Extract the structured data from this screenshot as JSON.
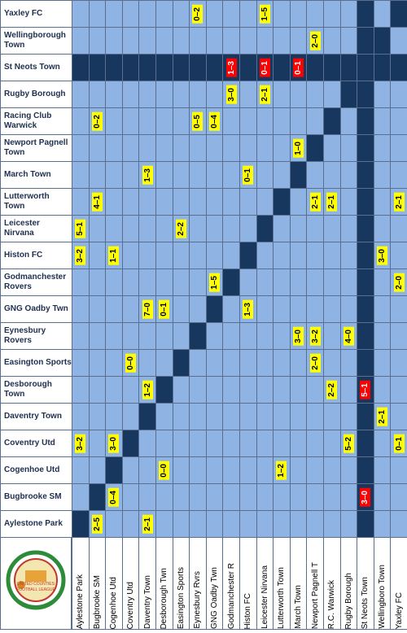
{
  "logo": {
    "text": [
      "UNITED COUNTIES",
      "FOOTBALL LEAGUE"
    ]
  },
  "table": {
    "columns": [
      "Aylestone Park",
      "Bugbrooke SM",
      "Cogenhoe Utd",
      "Coventry Utd",
      "Daventry Town",
      "Desborough Twn",
      "Easington Sports",
      "Eynesbury Rvrs",
      "GNG Oadby Twn",
      "Godmanchester R",
      "Histon FC",
      "Leicester Nirvana",
      "Lutterworth Town",
      "March Town",
      "Newport Pagnell T",
      "R.C. Warwick",
      "Rugby Borough",
      "St Neots Town",
      "Wellingboro Town",
      "Yaxley FC"
    ],
    "rows": [
      {
        "label": "Yaxley FC",
        "cells": [
          null,
          null,
          null,
          null,
          null,
          null,
          null,
          "0–2",
          null,
          null,
          null,
          "1–5",
          null,
          null,
          null,
          null,
          null,
          null,
          null,
          null
        ]
      },
      {
        "label": "Wellingborough Town",
        "cells": [
          null,
          null,
          null,
          null,
          null,
          null,
          null,
          null,
          null,
          null,
          null,
          null,
          null,
          null,
          "2–0",
          null,
          null,
          null,
          null,
          null
        ]
      },
      {
        "label": "St Neots Town",
        "cells": [
          null,
          null,
          null,
          null,
          null,
          null,
          null,
          null,
          null,
          "1–3",
          null,
          "0–1",
          null,
          "0–1",
          null,
          null,
          null,
          null,
          null,
          null
        ]
      },
      {
        "label": "Rugby Borough",
        "cells": [
          null,
          null,
          null,
          null,
          null,
          null,
          null,
          null,
          null,
          "3–0",
          null,
          "2–1",
          null,
          null,
          null,
          null,
          null,
          null,
          null,
          null
        ]
      },
      {
        "label": "Racing Club Warwick",
        "cells": [
          null,
          "0–2",
          null,
          null,
          null,
          null,
          null,
          "0–5",
          "0–4",
          null,
          null,
          null,
          null,
          null,
          null,
          null,
          null,
          null,
          null,
          null
        ]
      },
      {
        "label": "Newport Pagnell Town",
        "cells": [
          null,
          null,
          null,
          null,
          null,
          null,
          null,
          null,
          null,
          null,
          null,
          null,
          null,
          "1–0",
          null,
          null,
          null,
          null,
          null,
          null
        ]
      },
      {
        "label": "March Town",
        "cells": [
          null,
          null,
          null,
          null,
          "1–3",
          null,
          null,
          null,
          null,
          null,
          "0–1",
          null,
          null,
          null,
          null,
          null,
          null,
          null,
          null,
          null
        ]
      },
      {
        "label": "Lutterworth Town",
        "cells": [
          null,
          "4–1",
          null,
          null,
          null,
          null,
          null,
          null,
          null,
          null,
          null,
          null,
          null,
          null,
          "2–1",
          "2–1",
          null,
          null,
          null,
          "2–1"
        ]
      },
      {
        "label": "Leicester Nirvana",
        "cells": [
          "5–1",
          null,
          null,
          null,
          null,
          null,
          "2–2",
          null,
          null,
          null,
          null,
          null,
          null,
          null,
          null,
          null,
          null,
          null,
          null,
          null
        ]
      },
      {
        "label": "Histon FC",
        "cells": [
          "3–2",
          null,
          "1–1",
          null,
          null,
          null,
          null,
          null,
          null,
          null,
          null,
          null,
          null,
          null,
          null,
          null,
          null,
          null,
          "3–0",
          null
        ]
      },
      {
        "label": "Godmanchester Rovers",
        "cells": [
          null,
          null,
          null,
          null,
          null,
          null,
          null,
          null,
          "1–5",
          null,
          null,
          null,
          null,
          null,
          null,
          null,
          null,
          null,
          null,
          "2–0"
        ]
      },
      {
        "label": "GNG Oadby Twn",
        "cells": [
          null,
          null,
          null,
          null,
          "7–0",
          "0–1",
          null,
          null,
          null,
          null,
          "1–3",
          null,
          null,
          null,
          null,
          null,
          null,
          null,
          null,
          null
        ]
      },
      {
        "label": "Eynesbury Rovers",
        "cells": [
          null,
          null,
          null,
          null,
          null,
          null,
          null,
          null,
          null,
          null,
          null,
          null,
          null,
          "3–0",
          "3–2",
          null,
          "4–0",
          null,
          null,
          null
        ]
      },
      {
        "label": "Easington Sports",
        "cells": [
          null,
          null,
          null,
          "0–0",
          null,
          null,
          null,
          null,
          null,
          null,
          null,
          null,
          null,
          null,
          "2–0",
          null,
          null,
          null,
          null,
          null
        ]
      },
      {
        "label": "Desborough Town",
        "cells": [
          null,
          null,
          null,
          null,
          "1–2",
          null,
          null,
          null,
          null,
          null,
          null,
          null,
          null,
          null,
          null,
          "2–2",
          null,
          "5–1",
          null,
          null
        ]
      },
      {
        "label": "Daventry Town",
        "cells": [
          null,
          null,
          null,
          null,
          null,
          null,
          null,
          null,
          null,
          null,
          null,
          null,
          null,
          null,
          null,
          null,
          null,
          null,
          "2–1",
          null
        ]
      },
      {
        "label": "Coventry Utd",
        "cells": [
          "3–2",
          null,
          "3–0",
          null,
          null,
          null,
          null,
          null,
          null,
          null,
          null,
          null,
          null,
          null,
          null,
          null,
          "5–2",
          null,
          null,
          "0–1"
        ]
      },
      {
        "label": "Cogenhoe Utd",
        "cells": [
          null,
          null,
          null,
          null,
          null,
          "0–0",
          null,
          null,
          null,
          null,
          null,
          null,
          "1–2",
          null,
          null,
          null,
          null,
          null,
          null,
          null
        ]
      },
      {
        "label": "Bugbrooke SM",
        "cells": [
          null,
          null,
          "0–4",
          null,
          null,
          null,
          null,
          null,
          null,
          null,
          null,
          null,
          null,
          null,
          null,
          null,
          null,
          "3–0",
          null,
          null
        ]
      },
      {
        "label": "Aylestone Park",
        "cells": [
          null,
          "2–5",
          null,
          null,
          "2–1",
          null,
          null,
          null,
          null,
          null,
          null,
          null,
          null,
          null,
          null,
          null,
          null,
          null,
          null,
          null
        ]
      }
    ]
  }
}
